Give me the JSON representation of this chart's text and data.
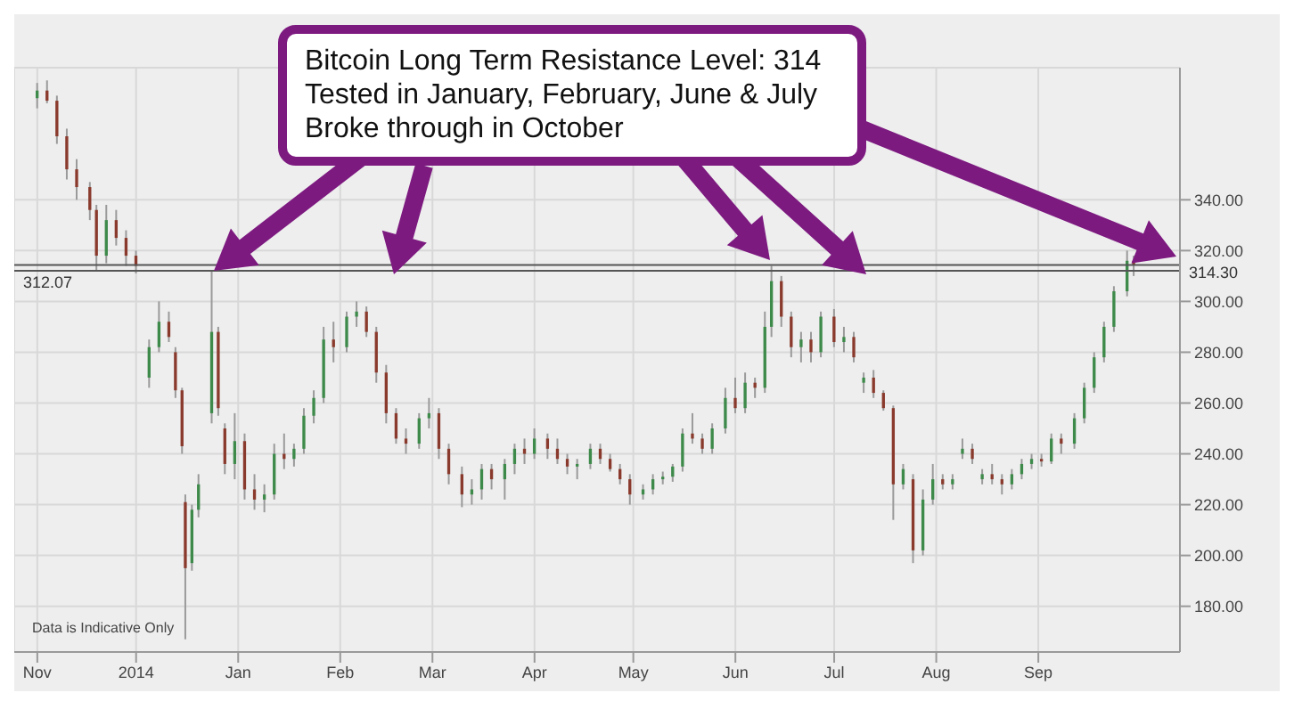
{
  "chart_data": {
    "type": "candlestick",
    "annotations": [
      "Bitcoin Long Term Resistance Level: 314\nTested in January, February, June & July\nBroke through in October",
      "Data is Indicative Only"
    ],
    "x": [
      "2014-11-01",
      "2014-11-04",
      "2014-11-07",
      "2014-11-10",
      "2014-11-13",
      "2014-11-17",
      "2014-11-19",
      "2014-11-22",
      "2014-11-25",
      "2014-11-28",
      "2014-12-01",
      "2014-12-05",
      "2014-12-08",
      "2014-12-11",
      "2014-12-13",
      "2014-12-15",
      "2014-12-16",
      "2014-12-18",
      "2014-12-20",
      "2014-12-24",
      "2014-12-26",
      "2014-12-28",
      "2014-12-31",
      "2015-01-03",
      "2015-01-06",
      "2015-01-09",
      "2015-01-12",
      "2015-01-15",
      "2015-01-18",
      "2015-01-21",
      "2015-01-24",
      "2015-01-27",
      "2015-01-30",
      "2015-02-03",
      "2015-02-06",
      "2015-02-09",
      "2015-02-12",
      "2015-02-15",
      "2015-02-18",
      "2015-02-21",
      "2015-02-25",
      "2015-02-28",
      "2015-03-03",
      "2015-03-06",
      "2015-03-10",
      "2015-03-13",
      "2015-03-16",
      "2015-03-19",
      "2015-03-23",
      "2015-03-26",
      "2015-03-29",
      "2015-04-01",
      "2015-04-05",
      "2015-04-08",
      "2015-04-11",
      "2015-04-14",
      "2015-04-18",
      "2015-04-21",
      "2015-04-24",
      "2015-04-27",
      "2015-04-30",
      "2015-05-04",
      "2015-05-07",
      "2015-05-10",
      "2015-05-13",
      "2015-05-16",
      "2015-05-19",
      "2015-05-22",
      "2015-05-25",
      "2015-05-29",
      "2015-06-01",
      "2015-06-04",
      "2015-06-07",
      "2015-06-10",
      "2015-06-12",
      "2015-06-15",
      "2015-06-18",
      "2015-06-21",
      "2015-06-24",
      "2015-06-27",
      "2015-07-01",
      "2015-07-04",
      "2015-07-07",
      "2015-07-10",
      "2015-07-13",
      "2015-07-16",
      "2015-07-19",
      "2015-07-22",
      "2015-07-25",
      "2015-07-28",
      "2015-07-31",
      "2015-08-03",
      "2015-08-06",
      "2015-08-09",
      "2015-08-12",
      "2015-08-15",
      "2015-08-18",
      "2015-08-21",
      "2015-08-24",
      "2015-08-27",
      "2015-08-30",
      "2015-09-02",
      "2015-09-05",
      "2015-09-08",
      "2015-09-12",
      "2015-09-15",
      "2015-09-18",
      "2015-09-21",
      "2015-09-24",
      "2015-09-28",
      "2015-09-30"
    ],
    "ohlc": [
      [
        380,
        386,
        376,
        383
      ],
      [
        383,
        387,
        378,
        379
      ],
      [
        379,
        381,
        362,
        365
      ],
      [
        365,
        368,
        348,
        352
      ],
      [
        352,
        356,
        340,
        345
      ],
      [
        345,
        347,
        332,
        336
      ],
      [
        336,
        338,
        312,
        318
      ],
      [
        318,
        338,
        315,
        332
      ],
      [
        332,
        336,
        322,
        325
      ],
      [
        325,
        328,
        314,
        318
      ],
      [
        318,
        320,
        311,
        314
      ],
      [
        270,
        285,
        266,
        282
      ],
      [
        282,
        300,
        280,
        292
      ],
      [
        292,
        296,
        284,
        286
      ],
      [
        280,
        282,
        262,
        265
      ],
      [
        265,
        266,
        240,
        243
      ],
      [
        221,
        224,
        167,
        195
      ],
      [
        197,
        220,
        194,
        218
      ],
      [
        218,
        232,
        215,
        228
      ],
      [
        256,
        312,
        252,
        288
      ],
      [
        288,
        290,
        255,
        258
      ],
      [
        250,
        252,
        232,
        236
      ],
      [
        236,
        256,
        230,
        245
      ],
      [
        245,
        248,
        222,
        226
      ],
      [
        226,
        232,
        218,
        222
      ],
      [
        222,
        228,
        217,
        224
      ],
      [
        224,
        244,
        222,
        240
      ],
      [
        240,
        248,
        234,
        238
      ],
      [
        238,
        244,
        235,
        242
      ],
      [
        242,
        258,
        240,
        255
      ],
      [
        255,
        265,
        252,
        262
      ],
      [
        262,
        290,
        260,
        285
      ],
      [
        285,
        292,
        276,
        282
      ],
      [
        282,
        296,
        280,
        294
      ],
      [
        294,
        300,
        290,
        296
      ],
      [
        296,
        298,
        286,
        288
      ],
      [
        288,
        290,
        268,
        272
      ],
      [
        272,
        275,
        252,
        256
      ],
      [
        256,
        258,
        244,
        246
      ],
      [
        246,
        250,
        240,
        244
      ],
      [
        244,
        256,
        242,
        254
      ],
      [
        254,
        262,
        250,
        256
      ],
      [
        256,
        258,
        238,
        242
      ],
      [
        242,
        244,
        228,
        232
      ],
      [
        232,
        235,
        219,
        224
      ],
      [
        224,
        230,
        220,
        226
      ],
      [
        226,
        236,
        222,
        234
      ],
      [
        234,
        236,
        226,
        230
      ],
      [
        230,
        238,
        222,
        236
      ],
      [
        236,
        244,
        232,
        242
      ],
      [
        242,
        246,
        236,
        240
      ],
      [
        240,
        250,
        238,
        246
      ],
      [
        246,
        248,
        238,
        242
      ],
      [
        242,
        246,
        236,
        238
      ],
      [
        238,
        240,
        232,
        235
      ],
      [
        235,
        238,
        230,
        236
      ],
      [
        236,
        244,
        234,
        242
      ],
      [
        242,
        244,
        236,
        238
      ],
      [
        238,
        240,
        233,
        234
      ],
      [
        234,
        236,
        228,
        230
      ],
      [
        230,
        232,
        220,
        224
      ],
      [
        224,
        228,
        222,
        226
      ],
      [
        226,
        232,
        224,
        230
      ],
      [
        230,
        233,
        228,
        231
      ],
      [
        231,
        236,
        229,
        235
      ],
      [
        235,
        250,
        233,
        248
      ],
      [
        248,
        256,
        244,
        246
      ],
      [
        246,
        248,
        240,
        242
      ],
      [
        242,
        252,
        240,
        250
      ],
      [
        250,
        266,
        248,
        262
      ],
      [
        262,
        270,
        256,
        258
      ],
      [
        258,
        272,
        256,
        268
      ],
      [
        268,
        270,
        262,
        266
      ],
      [
        266,
        296,
        264,
        290
      ],
      [
        290,
        314,
        286,
        308
      ],
      [
        308,
        310,
        290,
        294
      ],
      [
        294,
        296,
        278,
        282
      ],
      [
        282,
        288,
        276,
        285
      ],
      [
        285,
        288,
        276,
        280
      ],
      [
        280,
        296,
        278,
        294
      ],
      [
        294,
        297,
        282,
        284
      ],
      [
        284,
        290,
        280,
        286
      ],
      [
        286,
        288,
        276,
        278
      ],
      [
        268,
        272,
        264,
        270
      ],
      [
        270,
        273,
        262,
        264
      ],
      [
        264,
        265,
        257,
        258
      ],
      [
        258,
        259,
        214,
        228
      ],
      [
        228,
        236,
        226,
        234
      ],
      [
        230,
        232,
        197,
        202
      ],
      [
        202,
        226,
        200,
        222
      ],
      [
        222,
        236,
        220,
        230
      ],
      [
        230,
        232,
        226,
        228
      ],
      [
        228,
        232,
        226,
        230
      ],
      [
        240,
        246,
        238,
        242
      ],
      [
        242,
        244,
        236,
        238
      ],
      [
        230,
        234,
        228,
        232
      ],
      [
        232,
        236,
        228,
        230
      ],
      [
        230,
        232,
        224,
        228
      ],
      [
        228,
        234,
        226,
        232
      ],
      [
        232,
        238,
        230,
        236
      ],
      [
        236,
        240,
        234,
        238
      ],
      [
        238,
        240,
        235,
        237
      ],
      [
        237,
        248,
        236,
        246
      ],
      [
        246,
        248,
        240,
        244
      ],
      [
        244,
        256,
        242,
        254
      ],
      [
        254,
        268,
        252,
        266
      ],
      [
        266,
        280,
        264,
        278
      ],
      [
        278,
        292,
        276,
        290
      ],
      [
        290,
        306,
        288,
        304
      ],
      [
        304,
        320,
        302,
        316
      ],
      [
        316,
        318,
        310,
        314.3
      ]
    ],
    "xlim": [
      "2014-10-25",
      "2015-10-14"
    ],
    "xticks": [
      {
        "value": "2014-11-01",
        "label": "Nov"
      },
      {
        "value": "2014-12-01",
        "label": "2014"
      },
      {
        "value": "2015-01-01",
        "label": "Jan"
      },
      {
        "value": "2015-02-01",
        "label": "Feb"
      },
      {
        "value": "2015-03-01",
        "label": "Mar"
      },
      {
        "value": "2015-04-01",
        "label": "Apr"
      },
      {
        "value": "2015-05-01",
        "label": "May"
      },
      {
        "value": "2015-06-01",
        "label": "Jun"
      },
      {
        "value": "2015-07-01",
        "label": "Jul"
      },
      {
        "value": "2015-08-01",
        "label": "Aug"
      },
      {
        "value": "2015-09-01",
        "label": "Sep"
      }
    ],
    "ylim": [
      162,
      392
    ],
    "yticks": [
      {
        "value": 180,
        "label": "180.00"
      },
      {
        "value": 200,
        "label": "200.00"
      },
      {
        "value": 220,
        "label": "220.00"
      },
      {
        "value": 240,
        "label": "240.00"
      },
      {
        "value": 260,
        "label": "260.00"
      },
      {
        "value": 280,
        "label": "280.00"
      },
      {
        "value": 300,
        "label": "300.00"
      },
      {
        "value": 320,
        "label": "320.00"
      },
      {
        "value": 340,
        "label": "340.00"
      }
    ],
    "ref_lines": [
      {
        "axis": "y",
        "value": 312.07,
        "label": "312.07",
        "color": "#555555"
      },
      {
        "axis": "y",
        "value": 314.3,
        "label": "314.30",
        "color": "#555555"
      }
    ],
    "grid": true
  }
}
